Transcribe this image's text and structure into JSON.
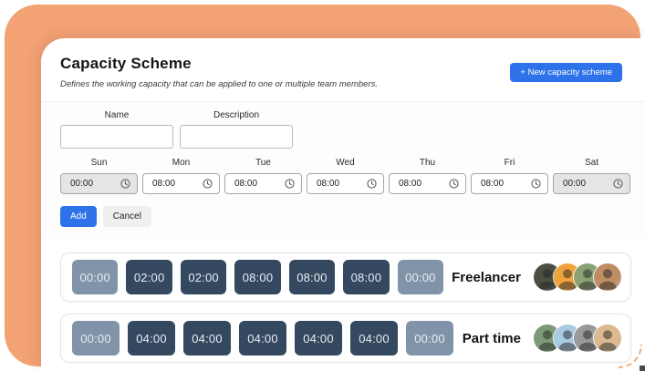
{
  "page": {
    "title": "Capacity Scheme",
    "subtitle": "Defines the working capacity that can be applied to one or multiple team members.",
    "new_button": "+ New capacity scheme"
  },
  "form": {
    "name_label": "Name",
    "name_value": "",
    "description_label": "Description",
    "description_value": "",
    "days": [
      "Sun",
      "Mon",
      "Tue",
      "Wed",
      "Thu",
      "Fri",
      "Sat"
    ],
    "day_times": [
      {
        "day": "Sun",
        "value": "00:00",
        "disabled": true
      },
      {
        "day": "Mon",
        "value": "08:00",
        "disabled": false
      },
      {
        "day": "Tue",
        "value": "08:00",
        "disabled": false
      },
      {
        "day": "Wed",
        "value": "08:00",
        "disabled": false
      },
      {
        "day": "Thu",
        "value": "08:00",
        "disabled": false
      },
      {
        "day": "Fri",
        "value": "08:00",
        "disabled": false
      },
      {
        "day": "Sat",
        "value": "00:00",
        "disabled": true
      }
    ],
    "add_label": "Add",
    "cancel_label": "Cancel"
  },
  "schemes": [
    {
      "name": "Freelancer",
      "times": [
        "00:00",
        "02:00",
        "02:00",
        "08:00",
        "08:00",
        "08:00",
        "00:00"
      ],
      "member_count": 4,
      "avatar_colors": [
        "#4a4f42",
        "#F0A33B",
        "#8aa273",
        "#bf8d62"
      ]
    },
    {
      "name": "Part time",
      "times": [
        "00:00",
        "04:00",
        "04:00",
        "04:00",
        "04:00",
        "04:00",
        "00:00"
      ],
      "member_count": 4,
      "avatar_colors": [
        "#7d9a78",
        "#a8cbe2",
        "#98999b",
        "#dcb98e"
      ]
    }
  ],
  "colors": {
    "background_orange": "#F3A274",
    "accent_blue": "#2D72E9",
    "chip_dark": "#344860",
    "chip_light": "#8193A9",
    "disabled_input_bg": "#e5e5e5"
  }
}
